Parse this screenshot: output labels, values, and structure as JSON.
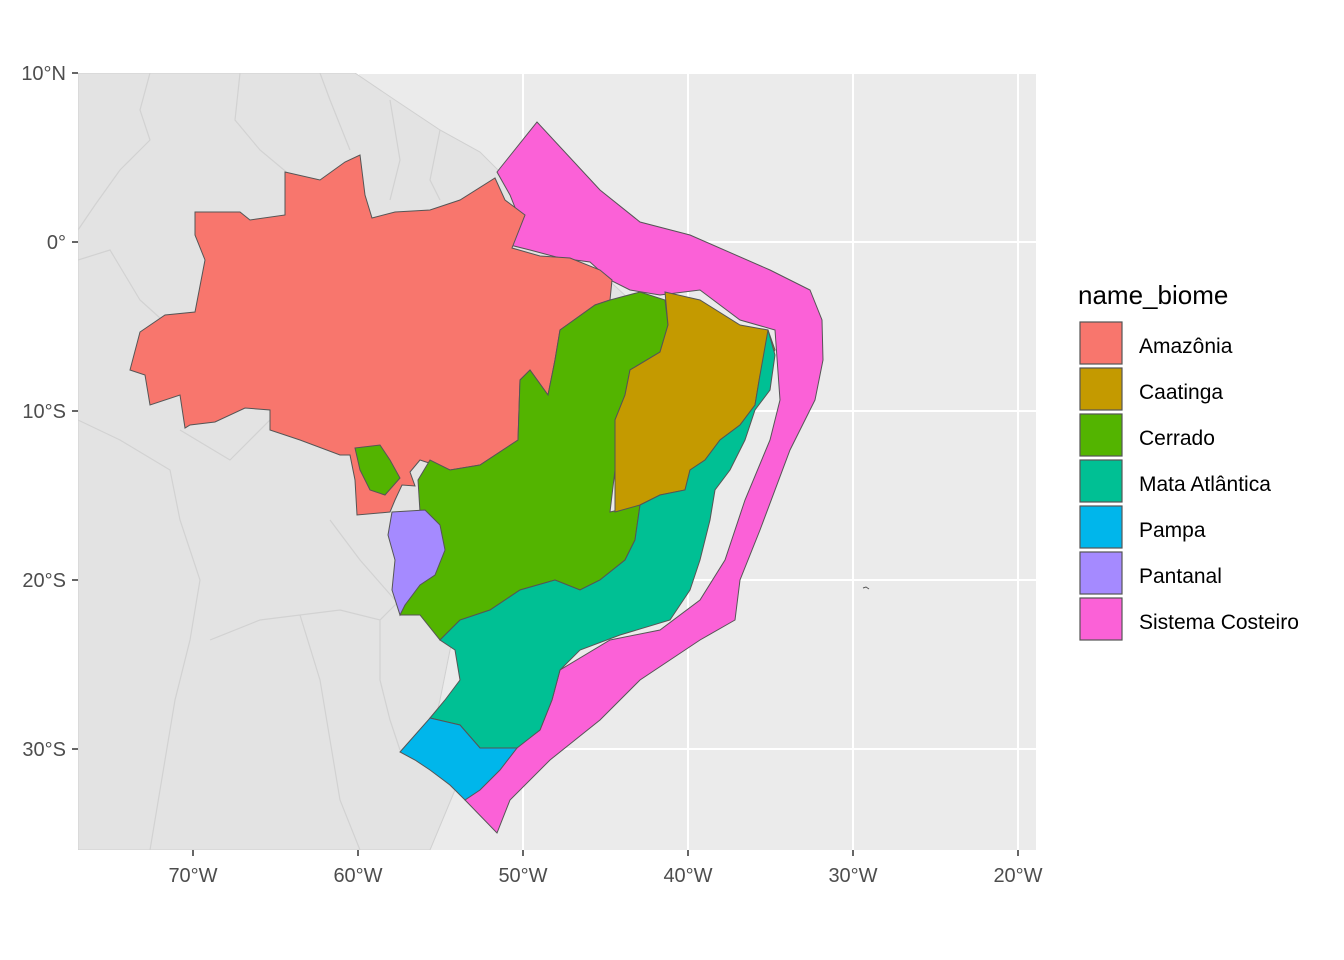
{
  "chart_data": {
    "type": "map",
    "title": "",
    "xlabel": "",
    "ylabel": "",
    "xlim": [
      -77,
      -19
    ],
    "ylim": [
      -36,
      10
    ],
    "x_ticks": [
      {
        "value": -70,
        "label": "70°W"
      },
      {
        "value": -60,
        "label": "60°W"
      },
      {
        "value": -50,
        "label": "50°W"
      },
      {
        "value": -40,
        "label": "40°W"
      },
      {
        "value": -30,
        "label": "30°W"
      },
      {
        "value": -20,
        "label": "20°W"
      }
    ],
    "y_ticks": [
      {
        "value": 10,
        "label": "10°N"
      },
      {
        "value": 0,
        "label": "0°"
      },
      {
        "value": -10,
        "label": "10°S"
      },
      {
        "value": -20,
        "label": "20°S"
      },
      {
        "value": -30,
        "label": "30°S"
      }
    ],
    "grid": true,
    "legend": {
      "title": "name_biome",
      "position": "right",
      "entries": [
        {
          "label": "Amazônia",
          "color": "#F8766D"
        },
        {
          "label": "Caatinga",
          "color": "#C49A00"
        },
        {
          "label": "Cerrado",
          "color": "#53B400"
        },
        {
          "label": "Mata Atlântica",
          "color": "#00C094"
        },
        {
          "label": "Pampa",
          "color": "#00B6EB"
        },
        {
          "label": "Pantanal",
          "color": "#A58AFF"
        },
        {
          "label": "Sistema Costeiro",
          "color": "#FB61D7"
        }
      ]
    }
  },
  "colors": {
    "panel_background": "#EBEBEB",
    "grid": "#FFFFFF",
    "land": "#E3E3E3",
    "border": "#555555"
  }
}
